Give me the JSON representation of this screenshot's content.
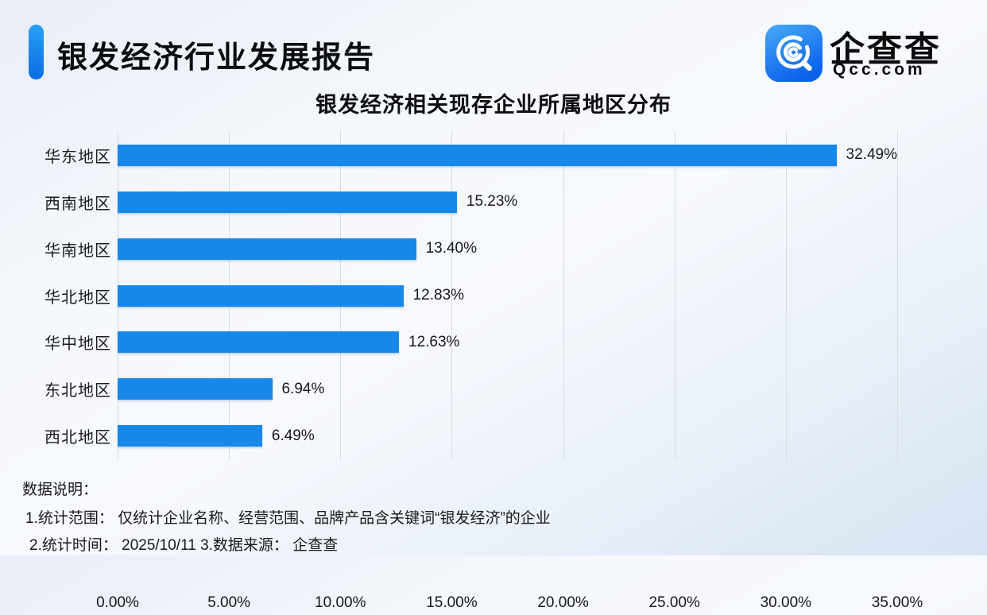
{
  "header": {
    "title": "银发经济行业发展报告"
  },
  "logo": {
    "icon": "qcc-magnifier-icon",
    "name": "企查查",
    "domain": "Qcc.com",
    "icon_gradient_top": "#47aaf5",
    "icon_gradient_bottom": "#0b63ec"
  },
  "chart_data": {
    "type": "bar",
    "orientation": "horizontal",
    "title": "银发经济相关现存企业所属地区分布",
    "categories": [
      "华东地区",
      "西南地区",
      "华南地区",
      "华北地区",
      "华中地区",
      "东北地区",
      "西北地区"
    ],
    "values": [
      32.49,
      15.23,
      13.4,
      12.83,
      12.63,
      6.94,
      6.49
    ],
    "value_labels": [
      "32.49%",
      "15.23%",
      "13.40%",
      "12.83%",
      "12.63%",
      "6.94%",
      "6.49%"
    ],
    "x_ticks": [
      "0.00%",
      "5.00%",
      "10.00%",
      "15.00%",
      "20.00%",
      "25.00%",
      "30.00%",
      "35.00%"
    ],
    "xlim": [
      0,
      35
    ],
    "xlabel": "",
    "ylabel": "",
    "grid": true,
    "legend": "none",
    "bar_color": "#1787e9",
    "gridline_color": "#d7dbe2"
  },
  "footer": {
    "heading": "数据说明：",
    "note1": "1.统计范围： 仅统计企业名称、经营范围、品牌产品含关键词“银发经济”的企业",
    "note2": "2.统计时间： 2025/10/11  3.数据来源： 企查查"
  }
}
